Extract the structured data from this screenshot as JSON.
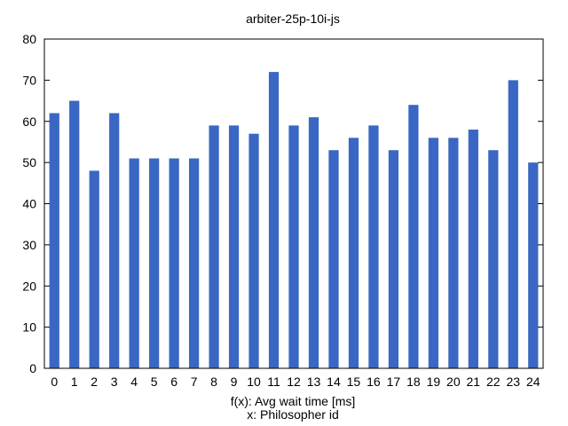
{
  "chart_data": {
    "type": "bar",
    "title": "arbiter-25p-10i-js",
    "xlabel": "f(x): Avg wait time [ms]",
    "xlabel2": "x: Philosopher id",
    "ylabel": "",
    "categories": [
      "0",
      "1",
      "2",
      "3",
      "4",
      "5",
      "6",
      "7",
      "8",
      "9",
      "10",
      "11",
      "12",
      "13",
      "14",
      "15",
      "16",
      "17",
      "18",
      "19",
      "20",
      "21",
      "22",
      "23",
      "24"
    ],
    "values": [
      62,
      65,
      48,
      62,
      51,
      51,
      51,
      51,
      59,
      59,
      57,
      72,
      59,
      61,
      53,
      56,
      59,
      53,
      64,
      56,
      56,
      58,
      53,
      70,
      50
    ],
    "ylim": [
      0,
      80
    ],
    "yticks": [
      0,
      10,
      20,
      30,
      40,
      50,
      60,
      70,
      80
    ],
    "grid": false,
    "legend": "none",
    "bar_color": "#3a67c4",
    "axis_color": "#000000"
  }
}
